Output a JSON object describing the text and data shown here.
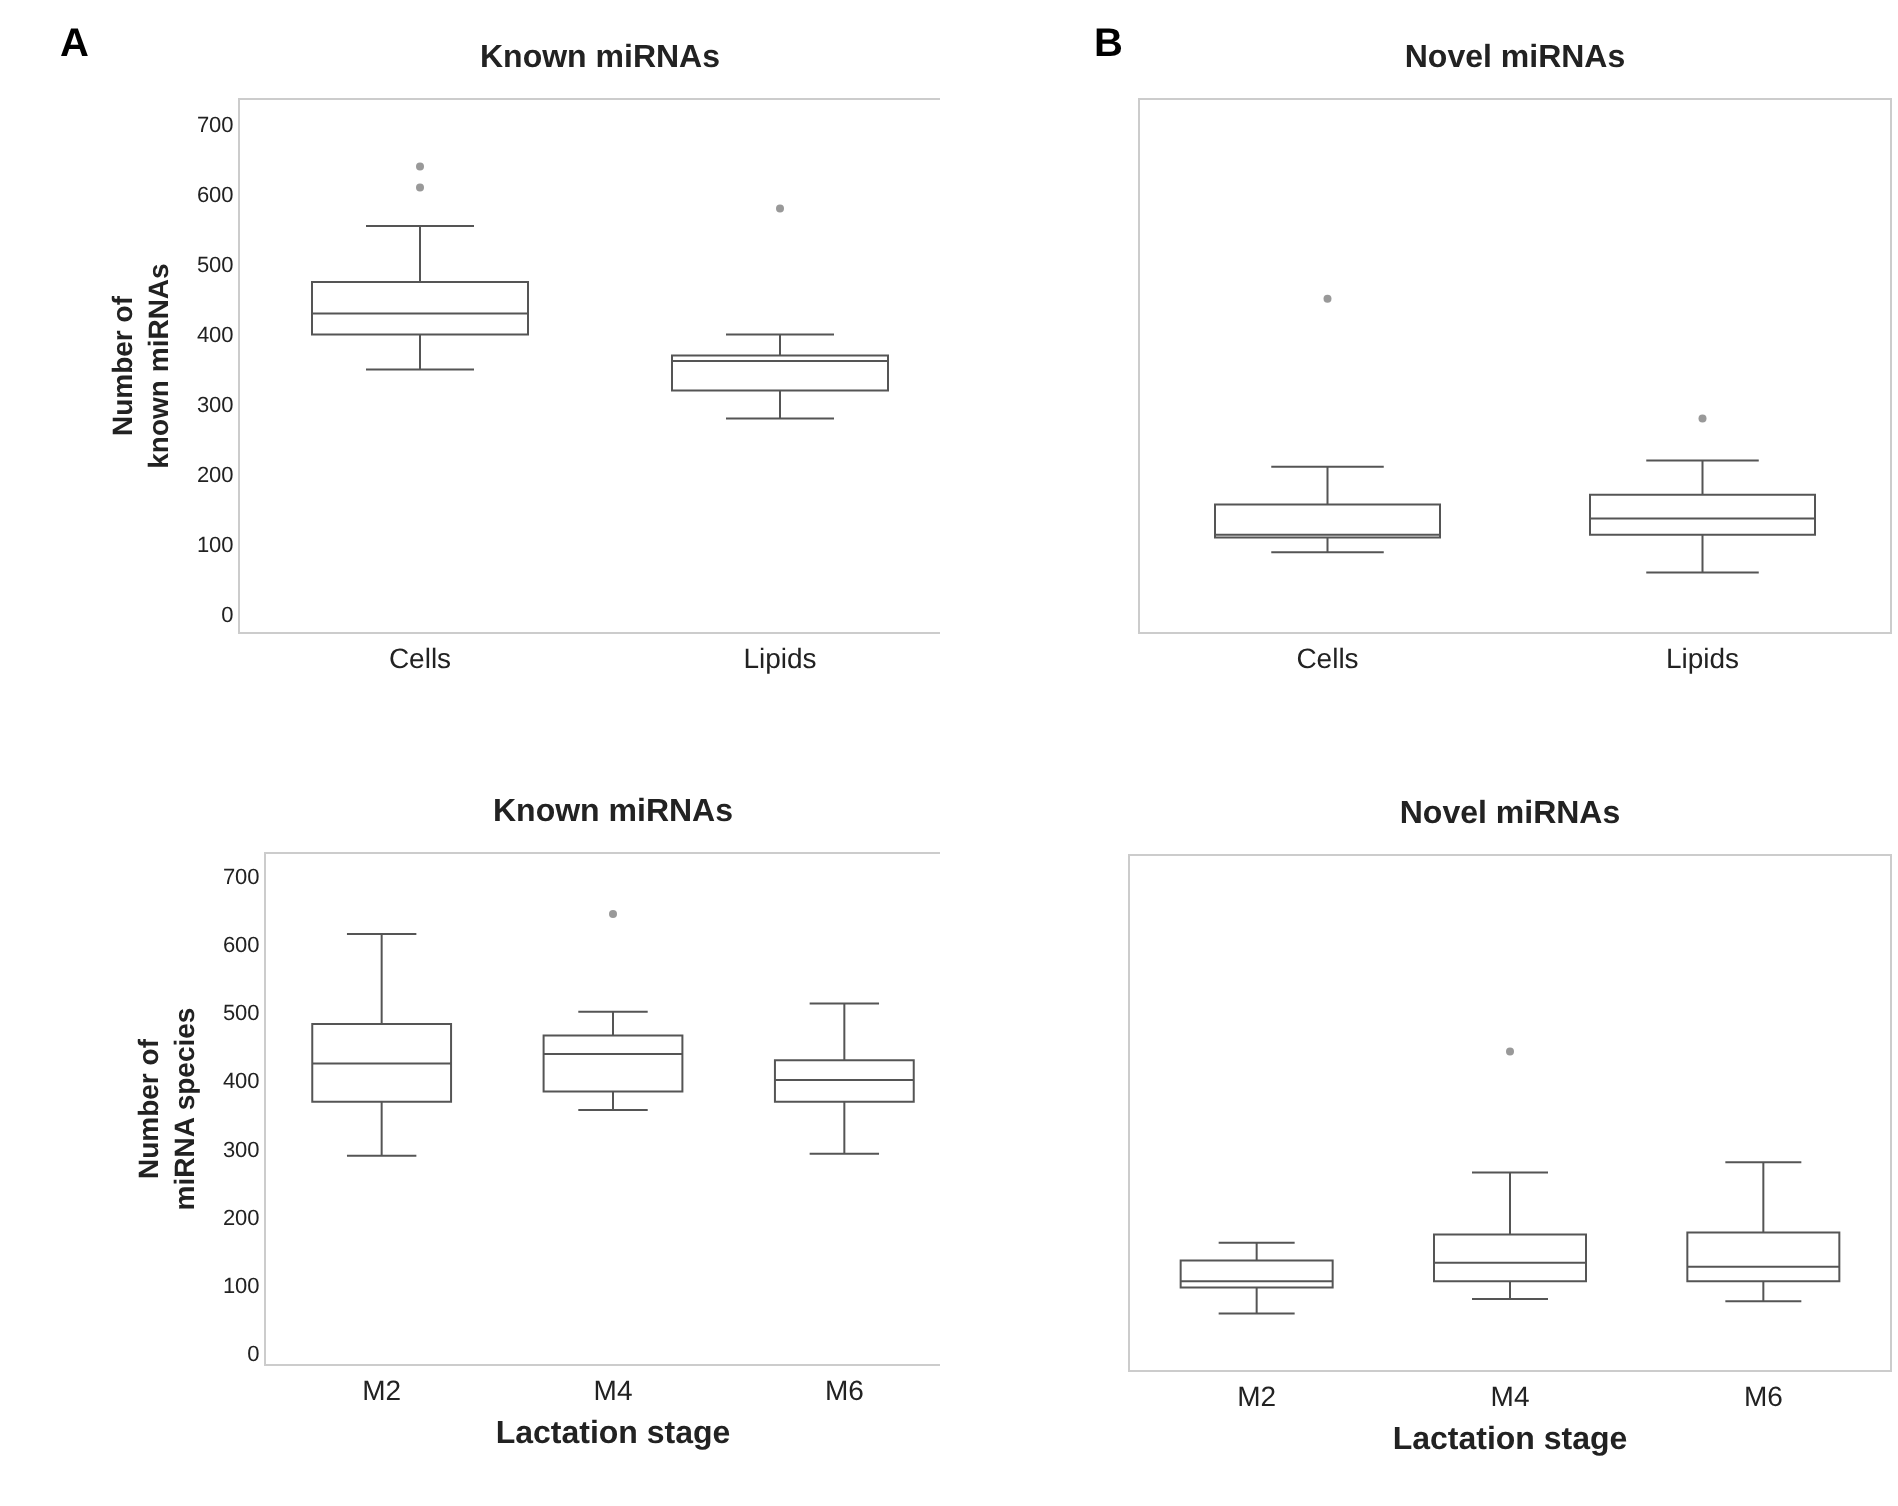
{
  "chart_data": [
    {
      "type": "box",
      "title": "Known miRNAs",
      "ylabel": "Number of\nknown miRNAs",
      "annotations": [
        "A"
      ],
      "categories": [
        "Cells",
        "Lipids"
      ],
      "color": "#555555",
      "ylim": [
        -25,
        735
      ],
      "yticks": [
        0,
        100,
        200,
        300,
        400,
        500,
        600,
        700
      ],
      "grid": false,
      "boxes": [
        {
          "low": 350,
          "q1": 400,
          "median": 430,
          "q3": 475,
          "high": 555,
          "outliers": [
            610,
            640
          ]
        },
        {
          "low": 280,
          "q1": 320,
          "median": 362,
          "q3": 370,
          "high": 400,
          "outliers": [
            580
          ]
        }
      ]
    },
    {
      "type": "box",
      "title": "Novel miRNAs",
      "annotations": [
        "B"
      ],
      "categories": [
        "Cells",
        "Lipids"
      ],
      "color": "#555555",
      "ylim": [
        -25,
        735
      ],
      "tick_labels": "x",
      "grid": false,
      "boxes": [
        {
          "low": 89,
          "q1": 110,
          "median": 114,
          "q3": 157,
          "high": 211,
          "outliers": [
            451
          ]
        },
        {
          "low": 60,
          "q1": 114,
          "median": 137,
          "q3": 171,
          "high": 220,
          "outliers": [
            280
          ]
        }
      ]
    },
    {
      "type": "box",
      "title": "Known miRNAs",
      "xlabel": "Lactation stage",
      "ylabel": "Number of\nmiRNA species",
      "categories": [
        "M2",
        "M4",
        "M6"
      ],
      "color": "#555555",
      "ylim": [
        -15,
        732
      ],
      "yticks": [
        0,
        100,
        200,
        300,
        400,
        500,
        600,
        700
      ],
      "grid": false,
      "boxes": [
        {
          "low": 290,
          "q1": 369,
          "median": 425,
          "q3": 483,
          "high": 615
        },
        {
          "low": 357,
          "q1": 384,
          "median": 439,
          "q3": 466,
          "high": 501,
          "outliers": [
            644
          ]
        },
        {
          "low": 293,
          "q1": 369,
          "median": 401,
          "q3": 430,
          "high": 513
        }
      ]
    },
    {
      "type": "box",
      "title": "Novel miRNAs",
      "xlabel": "Lactation stage",
      "categories": [
        "M2",
        "M4",
        "M6"
      ],
      "color": "#555555",
      "ylim": [
        -15,
        732
      ],
      "tick_labels": "x",
      "grid": false,
      "boxes": [
        {
          "low": 67,
          "q1": 105,
          "median": 114,
          "q3": 144,
          "high": 170
        },
        {
          "low": 88,
          "q1": 114,
          "median": 141,
          "q3": 182,
          "high": 272,
          "outliers": [
            448
          ]
        },
        {
          "low": 85,
          "q1": 114,
          "median": 135,
          "q3": 185,
          "high": 287
        }
      ]
    }
  ]
}
